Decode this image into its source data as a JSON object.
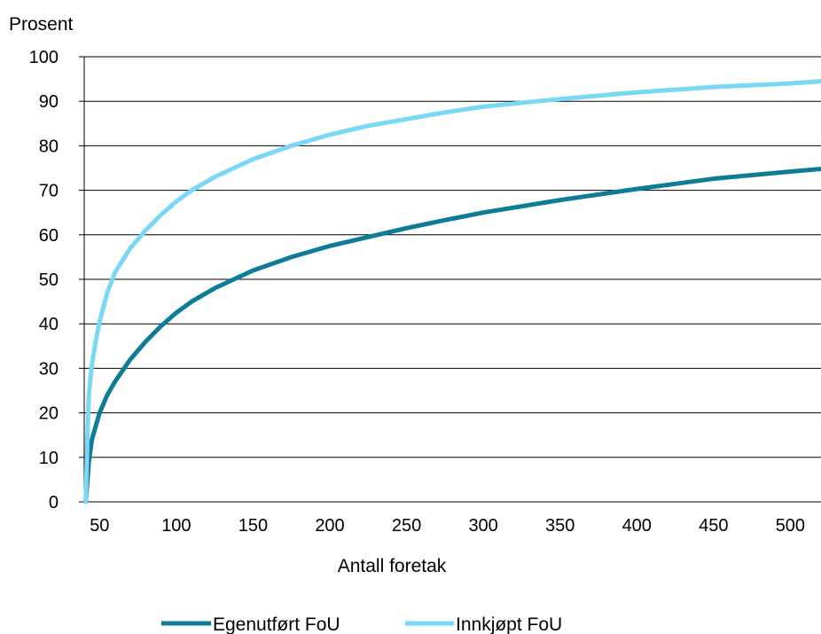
{
  "chart_data": {
    "type": "line",
    "title": "",
    "ylabel": "Prosent",
    "xlabel": "Antall foretak",
    "xlim": [
      40,
      520
    ],
    "ylim": [
      0,
      100
    ],
    "x_ticks": [
      50,
      100,
      150,
      200,
      250,
      300,
      350,
      400,
      450,
      500
    ],
    "y_ticks": [
      0,
      10,
      20,
      30,
      40,
      50,
      60,
      70,
      80,
      90,
      100
    ],
    "grid": true,
    "legend_position": "bottom",
    "series": [
      {
        "name": "Egenutført FoU",
        "color": "#0e7c96",
        "x": [
          41,
          43,
          45,
          50,
          55,
          60,
          70,
          80,
          90,
          100,
          110,
          125,
          150,
          175,
          200,
          225,
          250,
          275,
          300,
          350,
          400,
          450,
          500,
          520
        ],
        "y": [
          0,
          9,
          14,
          20,
          24,
          27,
          32,
          36,
          39.5,
          42.5,
          45,
          48,
          52,
          55,
          57.5,
          59.5,
          61.5,
          63.3,
          65,
          67.8,
          70.3,
          72.6,
          74.2,
          74.8
        ]
      },
      {
        "name": "Innkjøpt FoU",
        "color": "#78d8f5",
        "x": [
          41,
          42,
          43,
          45,
          48,
          50,
          55,
          60,
          70,
          80,
          90,
          100,
          110,
          125,
          150,
          175,
          200,
          225,
          250,
          275,
          300,
          350,
          400,
          450,
          500,
          520
        ],
        "y": [
          0,
          14,
          24,
          31,
          37,
          40.5,
          47,
          51.5,
          57,
          61,
          64.5,
          67.5,
          70,
          73,
          77,
          80,
          82.5,
          84.5,
          86,
          87.5,
          88.8,
          90.5,
          92,
          93.2,
          94,
          94.5
        ]
      }
    ]
  }
}
